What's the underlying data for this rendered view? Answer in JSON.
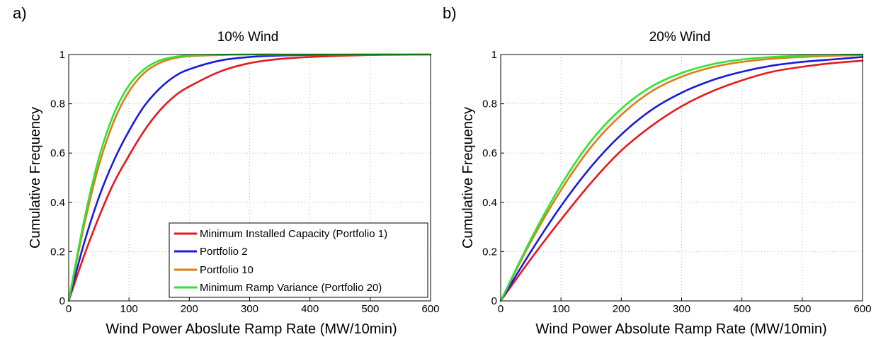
{
  "chart_data": [
    {
      "type": "line",
      "panel_label": "a)",
      "title": "10% Wind",
      "xlabel": "Wind Power Aboslute Ramp Rate (MW/10min)",
      "ylabel": "Cumulative Frequency",
      "xlim": [
        0,
        600
      ],
      "ylim": [
        0,
        1
      ],
      "xticks": [
        "0",
        "100",
        "200",
        "300",
        "400",
        "500",
        "600"
      ],
      "yticks": [
        "0",
        "0.2",
        "0.4",
        "0.6",
        "0.8",
        "1"
      ],
      "grid": true,
      "legend_position": "bottom-right",
      "x": [
        0,
        25,
        50,
        75,
        100,
        125,
        150,
        175,
        200,
        250,
        300,
        350,
        400,
        450,
        500,
        550,
        600
      ],
      "series": [
        {
          "name": "Minimum Installed Capacity (Portfolio 1)",
          "color": "#e41a1c",
          "values": [
            0,
            0.18,
            0.34,
            0.48,
            0.59,
            0.69,
            0.77,
            0.83,
            0.87,
            0.93,
            0.965,
            0.982,
            0.99,
            0.995,
            0.998,
            0.999,
            1.0
          ]
        },
        {
          "name": "Portfolio 2",
          "color": "#1a1adc",
          "values": [
            0,
            0.23,
            0.42,
            0.57,
            0.69,
            0.79,
            0.86,
            0.91,
            0.94,
            0.975,
            0.99,
            0.996,
            0.998,
            0.999,
            1.0,
            1.0,
            1.0
          ]
        },
        {
          "name": "Portfolio 10",
          "color": "#e07b1a",
          "values": [
            0,
            0.3,
            0.55,
            0.73,
            0.85,
            0.925,
            0.965,
            0.985,
            0.993,
            0.998,
            1.0,
            1.0,
            1.0,
            1.0,
            1.0,
            1.0,
            1.0
          ]
        },
        {
          "name": "Minimum Ramp Variance (Portfolio 20)",
          "color": "#2ee62e",
          "values": [
            0,
            0.32,
            0.58,
            0.76,
            0.875,
            0.94,
            0.975,
            0.99,
            0.996,
            0.999,
            1.0,
            1.0,
            1.0,
            1.0,
            1.0,
            1.0,
            1.0
          ]
        }
      ]
    },
    {
      "type": "line",
      "panel_label": "b)",
      "title": "20% Wind",
      "xlabel": "Wind Power Absolute Ramp Rate (MW/10min)",
      "ylabel": "Cumulative Frequency",
      "xlim": [
        0,
        600
      ],
      "ylim": [
        0,
        1
      ],
      "xticks": [
        "0",
        "100",
        "200",
        "300",
        "400",
        "500",
        "600"
      ],
      "yticks": [
        "0",
        "0.2",
        "0.4",
        "0.6",
        "0.8",
        "1"
      ],
      "grid": true,
      "x": [
        0,
        50,
        100,
        150,
        200,
        250,
        300,
        350,
        400,
        450,
        500,
        550,
        600
      ],
      "series": [
        {
          "name": "Minimum Installed Capacity (Portfolio 1)",
          "color": "#e41a1c",
          "values": [
            0,
            0.17,
            0.33,
            0.48,
            0.61,
            0.71,
            0.79,
            0.85,
            0.895,
            0.93,
            0.95,
            0.965,
            0.975
          ]
        },
        {
          "name": "Portfolio 2",
          "color": "#1a1adc",
          "values": [
            0,
            0.2,
            0.385,
            0.545,
            0.675,
            0.775,
            0.845,
            0.895,
            0.93,
            0.955,
            0.97,
            0.98,
            0.99
          ]
        },
        {
          "name": "Portfolio 10",
          "color": "#e07b1a",
          "values": [
            0,
            0.24,
            0.45,
            0.625,
            0.755,
            0.85,
            0.91,
            0.948,
            0.97,
            0.983,
            0.99,
            0.995,
            0.998
          ]
        },
        {
          "name": "Minimum Ramp Variance (Portfolio 20)",
          "color": "#2ee62e",
          "values": [
            0,
            0.25,
            0.47,
            0.65,
            0.78,
            0.87,
            0.925,
            0.96,
            0.98,
            0.99,
            0.995,
            0.998,
            1.0
          ]
        }
      ]
    }
  ]
}
